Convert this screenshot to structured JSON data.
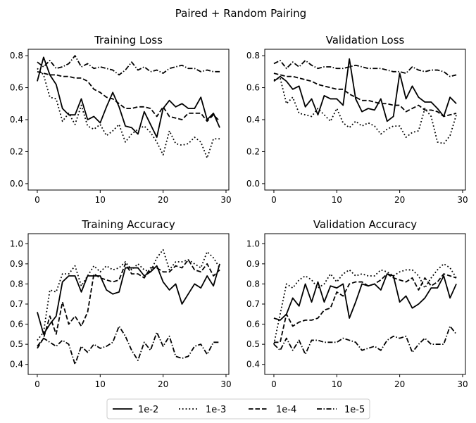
{
  "figure_title": "Paired + Random Pairing",
  "legend": [
    {
      "label": "1e-2",
      "dash": "solid"
    },
    {
      "label": "1e-3",
      "dash": "dotted"
    },
    {
      "label": "1e-4",
      "dash": "dashed"
    },
    {
      "label": "1e-5",
      "dash": "dashdot"
    }
  ],
  "chart_data": [
    {
      "type": "line",
      "title": "Training Loss",
      "xlim": [
        -1.45,
        30.45
      ],
      "ylim": [
        -0.04,
        0.84
      ],
      "xticks": [
        0,
        10,
        20,
        30
      ],
      "yticks": [
        0.0,
        0.2,
        0.4,
        0.6,
        0.8
      ],
      "x": [
        0,
        1,
        2,
        3,
        4,
        5,
        6,
        7,
        8,
        9,
        10,
        11,
        12,
        13,
        14,
        15,
        16,
        17,
        18,
        19,
        20,
        21,
        22,
        23,
        24,
        25,
        26,
        27,
        28,
        29
      ],
      "series": [
        {
          "name": "1e-2",
          "values": [
            0.64,
            0.79,
            0.68,
            0.62,
            0.47,
            0.43,
            0.43,
            0.53,
            0.4,
            0.42,
            0.38,
            0.48,
            0.57,
            0.48,
            0.36,
            0.35,
            0.31,
            0.45,
            0.37,
            0.29,
            0.47,
            0.52,
            0.48,
            0.5,
            0.47,
            0.47,
            0.54,
            0.4,
            0.44,
            0.35
          ]
        },
        {
          "name": "1e-3",
          "values": [
            0.72,
            0.68,
            0.54,
            0.53,
            0.39,
            0.44,
            0.37,
            0.49,
            0.36,
            0.34,
            0.37,
            0.3,
            0.33,
            0.37,
            0.26,
            0.31,
            0.34,
            0.36,
            0.32,
            0.26,
            0.18,
            0.33,
            0.25,
            0.24,
            0.25,
            0.29,
            0.26,
            0.16,
            0.28,
            0.28
          ]
        },
        {
          "name": "1e-4",
          "values": [
            0.7,
            0.69,
            0.68,
            0.68,
            0.67,
            0.67,
            0.66,
            0.66,
            0.64,
            0.59,
            0.57,
            0.54,
            0.53,
            0.5,
            0.47,
            0.47,
            0.48,
            0.48,
            0.47,
            0.42,
            0.48,
            0.42,
            0.41,
            0.4,
            0.44,
            0.44,
            0.44,
            0.39,
            0.43,
            0.39
          ]
        },
        {
          "name": "1e-5",
          "values": [
            0.76,
            0.73,
            0.77,
            0.72,
            0.73,
            0.75,
            0.8,
            0.73,
            0.75,
            0.72,
            0.73,
            0.72,
            0.71,
            0.68,
            0.71,
            0.76,
            0.71,
            0.73,
            0.7,
            0.71,
            0.69,
            0.72,
            0.73,
            0.74,
            0.72,
            0.72,
            0.7,
            0.71,
            0.7,
            0.7
          ]
        }
      ]
    },
    {
      "type": "line",
      "title": "Validation Loss",
      "xlim": [
        -1.45,
        30.45
      ],
      "ylim": [
        -0.04,
        0.84
      ],
      "xticks": [
        0,
        10,
        20,
        30
      ],
      "yticks": [
        0.0,
        0.2,
        0.4,
        0.6,
        0.8
      ],
      "x": [
        0,
        1,
        2,
        3,
        4,
        5,
        6,
        7,
        8,
        9,
        10,
        11,
        12,
        13,
        14,
        15,
        16,
        17,
        18,
        19,
        20,
        21,
        22,
        23,
        24,
        25,
        26,
        27,
        28,
        29
      ],
      "series": [
        {
          "name": "1e-2",
          "values": [
            0.64,
            0.67,
            0.64,
            0.59,
            0.61,
            0.48,
            0.53,
            0.43,
            0.55,
            0.53,
            0.53,
            0.49,
            0.78,
            0.53,
            0.45,
            0.47,
            0.46,
            0.53,
            0.39,
            0.42,
            0.69,
            0.53,
            0.61,
            0.54,
            0.51,
            0.51,
            0.47,
            0.42,
            0.54,
            0.5
          ]
        },
        {
          "name": "1e-3",
          "values": [
            0.65,
            0.66,
            0.5,
            0.54,
            0.44,
            0.43,
            0.42,
            0.47,
            0.43,
            0.39,
            0.47,
            0.38,
            0.35,
            0.39,
            0.36,
            0.38,
            0.36,
            0.31,
            0.34,
            0.36,
            0.36,
            0.29,
            0.32,
            0.33,
            0.47,
            0.42,
            0.26,
            0.25,
            0.3,
            0.43
          ]
        },
        {
          "name": "1e-4",
          "values": [
            0.69,
            0.68,
            0.67,
            0.67,
            0.66,
            0.65,
            0.64,
            0.62,
            0.61,
            0.6,
            0.59,
            0.59,
            0.56,
            0.54,
            0.52,
            0.52,
            0.51,
            0.5,
            0.5,
            0.49,
            0.49,
            0.45,
            0.47,
            0.49,
            0.46,
            0.46,
            0.45,
            0.42,
            0.43,
            0.44
          ]
        },
        {
          "name": "1e-5",
          "values": [
            0.75,
            0.77,
            0.72,
            0.76,
            0.73,
            0.77,
            0.74,
            0.72,
            0.73,
            0.73,
            0.72,
            0.72,
            0.73,
            0.74,
            0.73,
            0.72,
            0.72,
            0.72,
            0.71,
            0.7,
            0.7,
            0.69,
            0.73,
            0.71,
            0.7,
            0.71,
            0.71,
            0.7,
            0.67,
            0.68
          ]
        }
      ]
    },
    {
      "type": "line",
      "title": "Training Accuracy",
      "xlim": [
        -1.45,
        30.45
      ],
      "ylim": [
        0.35,
        1.05
      ],
      "xticks": [
        0,
        10,
        20,
        30
      ],
      "yticks": [
        0.4,
        0.5,
        0.6,
        0.7,
        0.8,
        0.9,
        1.0
      ],
      "x": [
        0,
        1,
        2,
        3,
        4,
        5,
        6,
        7,
        8,
        9,
        10,
        11,
        12,
        13,
        14,
        15,
        16,
        17,
        18,
        19,
        20,
        21,
        22,
        23,
        24,
        25,
        26,
        27,
        28,
        29
      ],
      "series": [
        {
          "name": "1e-2",
          "values": [
            0.66,
            0.55,
            0.6,
            0.64,
            0.81,
            0.84,
            0.84,
            0.76,
            0.84,
            0.84,
            0.84,
            0.77,
            0.75,
            0.76,
            0.88,
            0.88,
            0.88,
            0.84,
            0.86,
            0.89,
            0.81,
            0.77,
            0.8,
            0.7,
            0.75,
            0.8,
            0.78,
            0.84,
            0.79,
            0.9
          ]
        },
        {
          "name": "1e-3",
          "values": [
            0.52,
            0.56,
            0.77,
            0.76,
            0.85,
            0.85,
            0.89,
            0.79,
            0.84,
            0.89,
            0.86,
            0.89,
            0.87,
            0.88,
            0.91,
            0.87,
            0.9,
            0.87,
            0.86,
            0.93,
            0.97,
            0.87,
            0.91,
            0.91,
            0.92,
            0.9,
            0.88,
            0.96,
            0.93,
            0.88
          ]
        },
        {
          "name": "1e-4",
          "values": [
            0.48,
            0.53,
            0.64,
            0.55,
            0.71,
            0.6,
            0.64,
            0.59,
            0.66,
            0.85,
            0.83,
            0.82,
            0.81,
            0.82,
            0.9,
            0.85,
            0.85,
            0.83,
            0.88,
            0.88,
            0.86,
            0.86,
            0.89,
            0.88,
            0.92,
            0.87,
            0.86,
            0.9,
            0.84,
            0.87
          ]
        },
        {
          "name": "1e-5",
          "values": [
            0.49,
            0.53,
            0.51,
            0.49,
            0.52,
            0.5,
            0.4,
            0.49,
            0.46,
            0.5,
            0.48,
            0.49,
            0.51,
            0.59,
            0.54,
            0.47,
            0.42,
            0.51,
            0.47,
            0.56,
            0.49,
            0.54,
            0.44,
            0.43,
            0.44,
            0.49,
            0.5,
            0.45,
            0.51,
            0.51
          ]
        }
      ]
    },
    {
      "type": "line",
      "title": "Validation Accuracy",
      "xlim": [
        -1.45,
        30.45
      ],
      "ylim": [
        0.35,
        1.05
      ],
      "xticks": [
        0,
        10,
        20,
        30
      ],
      "yticks": [
        0.4,
        0.5,
        0.6,
        0.7,
        0.8,
        0.9,
        1.0
      ],
      "x": [
        0,
        1,
        2,
        3,
        4,
        5,
        6,
        7,
        8,
        9,
        10,
        11,
        12,
        13,
        14,
        15,
        16,
        17,
        18,
        19,
        20,
        21,
        22,
        23,
        24,
        25,
        26,
        27,
        28,
        29
      ],
      "series": [
        {
          "name": "1e-2",
          "values": [
            0.63,
            0.62,
            0.65,
            0.73,
            0.69,
            0.8,
            0.71,
            0.81,
            0.71,
            0.79,
            0.78,
            0.8,
            0.63,
            0.71,
            0.8,
            0.79,
            0.8,
            0.77,
            0.85,
            0.84,
            0.71,
            0.74,
            0.68,
            0.7,
            0.73,
            0.78,
            0.78,
            0.84,
            0.73,
            0.8
          ]
        },
        {
          "name": "1e-3",
          "values": [
            0.5,
            0.65,
            0.8,
            0.78,
            0.82,
            0.84,
            0.82,
            0.78,
            0.8,
            0.85,
            0.81,
            0.85,
            0.87,
            0.84,
            0.85,
            0.84,
            0.84,
            0.87,
            0.86,
            0.84,
            0.86,
            0.87,
            0.87,
            0.84,
            0.78,
            0.83,
            0.87,
            0.9,
            0.88,
            0.83
          ]
        },
        {
          "name": "1e-4",
          "values": [
            0.51,
            0.51,
            0.65,
            0.59,
            0.61,
            0.62,
            0.62,
            0.63,
            0.67,
            0.68,
            0.76,
            0.74,
            0.8,
            0.81,
            0.81,
            0.79,
            0.8,
            0.82,
            0.85,
            0.83,
            0.82,
            0.81,
            0.83,
            0.77,
            0.83,
            0.79,
            0.81,
            0.85,
            0.84,
            0.83
          ]
        },
        {
          "name": "1e-5",
          "values": [
            0.5,
            0.47,
            0.53,
            0.47,
            0.52,
            0.45,
            0.52,
            0.52,
            0.51,
            0.51,
            0.51,
            0.53,
            0.52,
            0.51,
            0.47,
            0.48,
            0.49,
            0.47,
            0.52,
            0.54,
            0.53,
            0.54,
            0.46,
            0.5,
            0.53,
            0.5,
            0.5,
            0.5,
            0.59,
            0.55
          ]
        }
      ]
    }
  ]
}
